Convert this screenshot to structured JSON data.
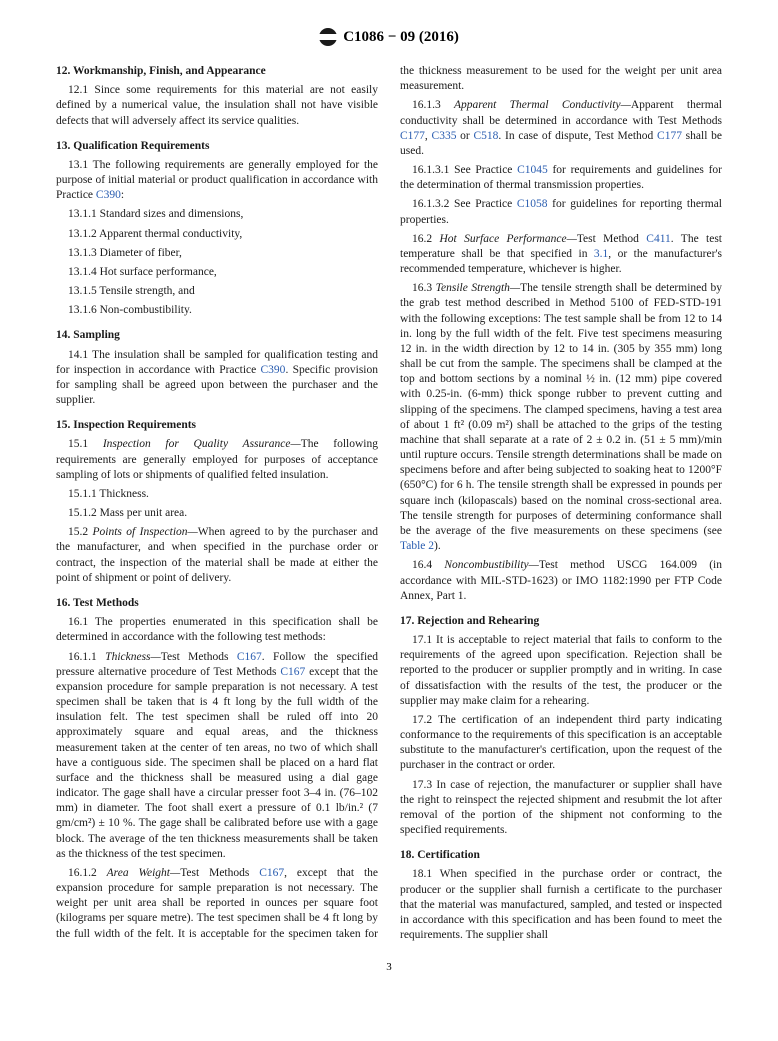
{
  "header": {
    "title": "C1086 − 09 (2016)"
  },
  "pagenum": "3",
  "colors": {
    "text": "#1a1a1a",
    "ref": "#2a5db0",
    "bg": "#ffffff"
  },
  "sections": {
    "s12": {
      "title": "12.  Workmanship, Finish, and Appearance",
      "p12_1": "12.1 Since some requirements for this material are not easily defined by a numerical value, the insulation shall not have visible defects that will adversely affect its service qualities."
    },
    "s13": {
      "title": "13.  Qualification Requirements",
      "p13_1a": "13.1 The following requirements are generally employed for the purpose of initial material or product qualification in accordance with Practice ",
      "p13_1_ref": "C390",
      "p13_1b": ":",
      "p13_1_1": "13.1.1  Standard sizes and dimensions,",
      "p13_1_2": "13.1.2  Apparent thermal conductivity,",
      "p13_1_3": "13.1.3  Diameter of fiber,",
      "p13_1_4": "13.1.4  Hot surface performance,",
      "p13_1_5": "13.1.5  Tensile strength, and",
      "p13_1_6": "13.1.6  Non-combustibility."
    },
    "s14": {
      "title": "14.  Sampling",
      "p14_1a": "14.1 The insulation shall be sampled for qualification testing and for inspection in accordance with Practice ",
      "p14_1_ref": "C390",
      "p14_1b": ". Specific provision for sampling shall be agreed upon between the purchaser and the supplier."
    },
    "s15": {
      "title": "15.  Inspection Requirements",
      "p15_1_lead": "15.1 ",
      "p15_1_italic": "Inspection for Quality Assurance—",
      "p15_1_body": "The following requirements are generally employed for purposes of acceptance sampling of lots or shipments of qualified felted insulation.",
      "p15_1_1": "15.1.1  Thickness.",
      "p15_1_2": "15.1.2  Mass per unit area.",
      "p15_2_lead": "15.2 ",
      "p15_2_italic": "Points of Inspection—",
      "p15_2_body": "When agreed to by the purchaser and the manufacturer, and when specified in the purchase order or contract, the inspection of the material shall be made at either the point of shipment or point of delivery."
    },
    "s16": {
      "title": "16.  Test Methods",
      "p16_1": "16.1 The properties enumerated in this specification shall be determined in accordance with the following test methods:",
      "p16_1_1_lead": "16.1.1 ",
      "p16_1_1_italic": "Thickness—",
      "p16_1_1_a": "Test Methods ",
      "p16_1_1_ref1": "C167",
      "p16_1_1_b": ". Follow the specified pressure alternative procedure of Test Methods ",
      "p16_1_1_ref2": "C167",
      "p16_1_1_c": " except that the expansion procedure for sample preparation is not necessary. A test specimen shall be taken that is 4 ft long by the full width of the insulation felt. The test specimen shall be ruled off into 20 approximately square and equal areas, and the thickness measurement taken at the center of ten areas, no two of which shall have a contiguous side. The specimen shall be placed on a hard flat surface and the thickness shall be measured using a dial gage indicator. The gage shall have a circular presser foot 3–4 in. (76–102 mm) in diameter. The foot shall exert a pressure of 0.1 lb/in.² (7 gm/cm²) ± 10 %. The gage shall be calibrated before use with a gage block. The average of the ten thickness measurements shall be taken as the thickness of the test specimen.",
      "p16_1_2_lead": "16.1.2 ",
      "p16_1_2_italic": "Area Weight—",
      "p16_1_2_a": "Test Methods ",
      "p16_1_2_ref": "C167",
      "p16_1_2_b": ", except that the expansion procedure for sample preparation is not necessary. The weight per unit area shall be reported in ounces per square foot (kilograms per square metre). The test specimen shall be 4 ft long by the full width of the felt. It is acceptable for the specimen taken for the thickness measurement to be used for the weight per unit area measurement.",
      "p16_1_3_lead": "16.1.3 ",
      "p16_1_3_italic": "Apparent Thermal Conductivity—",
      "p16_1_3_a": "Apparent thermal conductivity shall be determined in accordance with Test Methods ",
      "p16_1_3_ref1": "C177",
      "p16_1_3_b": ", ",
      "p16_1_3_ref2": "C335",
      "p16_1_3_c": " or ",
      "p16_1_3_ref3": "C518",
      "p16_1_3_d": ". In case of dispute, Test Method ",
      "p16_1_3_ref4": "C177",
      "p16_1_3_e": " shall be used.",
      "p16_1_3_1a": "16.1.3.1 See Practice ",
      "p16_1_3_1_ref": "C1045",
      "p16_1_3_1b": " for requirements and guidelines for the determination of thermal transmission properties.",
      "p16_1_3_2a": "16.1.3.2 See Practice ",
      "p16_1_3_2_ref": "C1058",
      "p16_1_3_2b": " for guidelines for reporting thermal properties.",
      "p16_2_lead": "16.2 ",
      "p16_2_italic": "Hot Surface Performance—",
      "p16_2_a": "Test Method ",
      "p16_2_ref1": "C411",
      "p16_2_b": ". The test temperature shall be that specified in ",
      "p16_2_ref2": "3.1",
      "p16_2_c": ", or the manufacturer's recommended temperature, whichever is higher.",
      "p16_3_lead": "16.3 ",
      "p16_3_italic": "Tensile Strength—",
      "p16_3_a": "The tensile strength shall be determined by the grab test method described in Method 5100 of FED-STD-191 with the following exceptions: The test sample shall be from 12 to 14 in. long by the full width of the felt. Five test specimens measuring 12 in. in the width direction by 12 to 14 in. (305 by 355 mm) long shall be cut from the sample. The specimens shall be clamped at the top and bottom sections by a nominal ½ in. (12 mm) pipe covered with 0.25-in. (6-mm) thick sponge rubber to prevent cutting and slipping of the specimens. The clamped specimens, having a test area of about 1 ft² (0.09 m²) shall be attached to the grips of the testing machine that shall separate at a rate of 2 ± 0.2 in. (51 ± 5 mm)/min until rupture occurs. Tensile strength determinations shall be made on specimens before and after being subjected to soaking heat to 1200°F (650°C) for 6 h. The tensile strength shall be expressed in pounds per square inch (kilopascals) based on the nominal cross-sectional area. The tensile strength for purposes of determining conformance shall be the average of the five measurements on these specimens (see ",
      "p16_3_ref": "Table 2",
      "p16_3_b": ").",
      "p16_4_lead": "16.4 ",
      "p16_4_italic": "Noncombustibility—",
      "p16_4_body": "Test method USCG 164.009 (in accordance with MIL-STD-1623) or IMO 1182:1990 per FTP Code Annex, Part 1."
    },
    "s17": {
      "title": "17.  Rejection and Rehearing",
      "p17_1": "17.1 It is acceptable to reject material that fails to conform to the requirements of the agreed upon specification. Rejection shall be reported to the producer or supplier promptly and in writing. In case of dissatisfaction with the results of the test, the producer or the supplier may make claim for a rehearing.",
      "p17_2": "17.2 The certification of an independent third party indicating conformance to the requirements of this specification is an acceptable substitute to the manufacturer's certification, upon the request of the purchaser in the contract or order.",
      "p17_3": "17.3 In case of rejection, the manufacturer or supplier shall have the right to reinspect the rejected shipment and resubmit the lot after removal of the portion of the shipment not conforming to the specified requirements."
    },
    "s18": {
      "title": "18.  Certification",
      "p18_1": "18.1 When specified in the purchase order or contract, the producer or the supplier shall furnish a certificate to the purchaser that the material was manufactured, sampled, and tested or inspected in accordance with this specification and has been found to meet the requirements. The supplier shall"
    }
  }
}
